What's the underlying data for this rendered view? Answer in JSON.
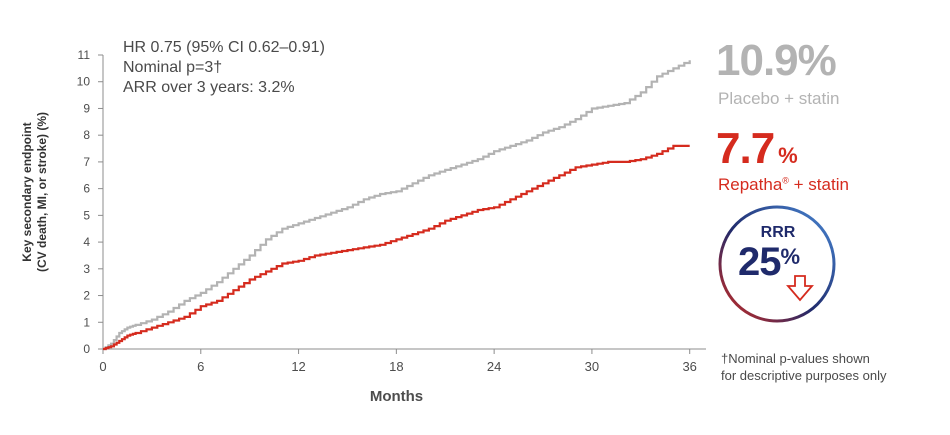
{
  "chart_data": {
    "type": "line",
    "xlabel": "Months",
    "ylabel_lines": [
      "Key secondary endpoint",
      "(CV death, MI, or stroke) (%)"
    ],
    "xlim": [
      0,
      37
    ],
    "ylim": [
      0,
      11
    ],
    "x_ticks": [
      0,
      6,
      12,
      18,
      24,
      30,
      36
    ],
    "y_ticks": [
      0,
      1,
      2,
      3,
      4,
      5,
      6,
      7,
      8,
      9,
      10,
      11
    ],
    "series": [
      {
        "name": "Placebo + statin",
        "color": "#b3b3b3",
        "x": [
          0,
          0.5,
          1,
          1.5,
          2,
          3,
          4,
          5,
          6,
          7,
          8,
          9,
          10,
          11,
          12,
          13,
          14,
          15,
          16,
          17,
          18,
          19,
          20,
          21,
          22,
          23,
          24,
          25,
          26,
          27,
          28,
          29,
          30,
          31,
          32,
          33,
          34,
          35,
          36
        ],
        "values": [
          0,
          0.2,
          0.6,
          0.8,
          0.9,
          1.1,
          1.4,
          1.8,
          2.1,
          2.5,
          3.0,
          3.5,
          4.1,
          4.5,
          4.7,
          4.9,
          5.1,
          5.3,
          5.6,
          5.8,
          5.9,
          6.2,
          6.5,
          6.7,
          6.9,
          7.1,
          7.4,
          7.6,
          7.8,
          8.1,
          8.3,
          8.6,
          9.0,
          9.1,
          9.2,
          9.6,
          10.2,
          10.5,
          10.8
        ]
      },
      {
        "name": "Repatha® + statin",
        "color": "#d52b1e",
        "x": [
          0,
          0.5,
          1,
          1.5,
          2,
          3,
          4,
          5,
          6,
          7,
          8,
          9,
          10,
          11,
          12,
          13,
          14,
          15,
          16,
          17,
          18,
          19,
          20,
          21,
          22,
          23,
          24,
          25,
          26,
          27,
          28,
          29,
          30,
          31,
          32,
          33,
          34,
          35,
          36
        ],
        "values": [
          0,
          0.1,
          0.3,
          0.5,
          0.6,
          0.8,
          1.0,
          1.2,
          1.6,
          1.8,
          2.2,
          2.6,
          2.9,
          3.2,
          3.3,
          3.5,
          3.6,
          3.7,
          3.8,
          3.9,
          4.1,
          4.3,
          4.5,
          4.8,
          5.0,
          5.2,
          5.3,
          5.6,
          5.9,
          6.2,
          6.5,
          6.8,
          6.9,
          7.0,
          7.0,
          7.1,
          7.3,
          7.6,
          7.6
        ]
      }
    ],
    "grid": false
  },
  "annotations": [
    "HR 0.75 (95% CI 0.62–0.91)",
    "Nominal p=3†",
    "ARR over 3 years: 3.2%"
  ],
  "placebo": {
    "value": "10.9%",
    "label": "Placebo + statin"
  },
  "repatha": {
    "value": "7.7",
    "pct": "%",
    "label_main": "Repatha",
    "label_mark": "®",
    "label_rest": " + statin"
  },
  "rrr": {
    "label": "RRR",
    "value": "25",
    "pct": "%",
    "ring_color_start": "#d52b1e",
    "ring_color_end": "#1f2a6b",
    "arrow_color": "#d52b1e"
  },
  "footnote": [
    "†Nominal p-values shown",
    "for descriptive purposes only"
  ]
}
